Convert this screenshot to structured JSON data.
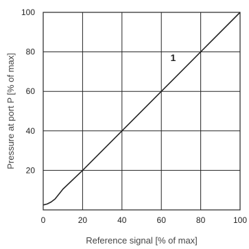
{
  "chart_data": {
    "type": "line",
    "title": "",
    "xlabel": "Reference signal [% of max]",
    "ylabel": "Pressure at port P [% of max]",
    "xlim": [
      0,
      100
    ],
    "ylim": [
      0,
      100
    ],
    "x_ticks": [
      0,
      20,
      40,
      60,
      80,
      100
    ],
    "y_ticks": [
      20,
      40,
      60,
      80,
      100
    ],
    "x_tick_labels": [
      "0",
      "20",
      "40",
      "60",
      "80",
      "100"
    ],
    "y_tick_labels": [
      "20",
      "40",
      "60",
      "80",
      "100"
    ],
    "grid": true,
    "series": [
      {
        "x": [
          0,
          2,
          4,
          6,
          8,
          10,
          20,
          40,
          60,
          80,
          100
        ],
        "y": [
          2.5,
          3,
          4,
          5.5,
          8,
          10.5,
          20,
          40,
          60,
          80,
          100
        ]
      }
    ],
    "annotations": [
      {
        "text": "1",
        "x": 66,
        "y": 77
      }
    ],
    "colors": {
      "line": "#222222",
      "grid": "#222222"
    }
  }
}
